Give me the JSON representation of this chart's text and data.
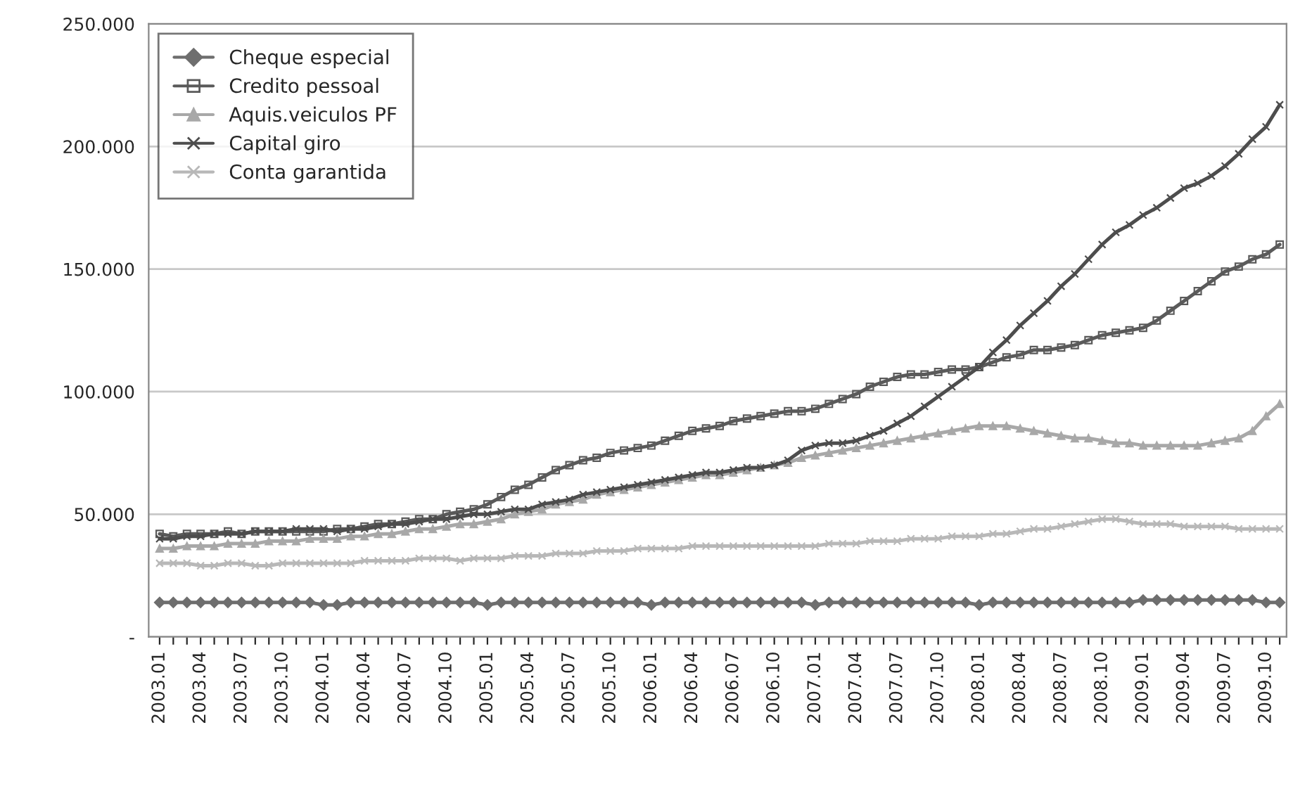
{
  "chart_data": {
    "type": "line",
    "categories": [
      "2003.01",
      null,
      null,
      "2003.04",
      null,
      null,
      "2003.07",
      null,
      null,
      "2003.10",
      null,
      null,
      "2004.01",
      null,
      null,
      "2004.04",
      null,
      null,
      "2004.07",
      null,
      null,
      "2004.10",
      null,
      null,
      "2005.01",
      null,
      null,
      "2005.04",
      null,
      null,
      "2005.07",
      null,
      null,
      "2005.10",
      null,
      null,
      "2006.01",
      null,
      null,
      "2006.04",
      null,
      null,
      "2006.07",
      null,
      null,
      "2006.10",
      null,
      null,
      "2007.01",
      null,
      null,
      "2007.04",
      null,
      null,
      "2007.07",
      null,
      null,
      "2007.10",
      null,
      null,
      "2008.01",
      null,
      null,
      "2008.04",
      null,
      null,
      "2008.07",
      null,
      null,
      "2008.10",
      null,
      null,
      "2009.01",
      null,
      null,
      "2009.04",
      null,
      null,
      "2009.07",
      null,
      null,
      "2009.10",
      null
    ],
    "series": [
      {
        "name": "Cheque especial",
        "color": "#6e6e6e",
        "marker": "diamond",
        "values": [
          14,
          14,
          14,
          14,
          14,
          14,
          14,
          14,
          14,
          14,
          14,
          14,
          13,
          13,
          14,
          14,
          14,
          14,
          14,
          14,
          14,
          14,
          14,
          14,
          13,
          14,
          14,
          14,
          14,
          14,
          14,
          14,
          14,
          14,
          14,
          14,
          13,
          14,
          14,
          14,
          14,
          14,
          14,
          14,
          14,
          14,
          14,
          14,
          13,
          14,
          14,
          14,
          14,
          14,
          14,
          14,
          14,
          14,
          14,
          14,
          13,
          14,
          14,
          14,
          14,
          14,
          14,
          14,
          14,
          14,
          14,
          14,
          15,
          15,
          15,
          15,
          15,
          15,
          15,
          15,
          15,
          14,
          14
        ]
      },
      {
        "name": "Credito pessoal",
        "color": "#5a5a5a",
        "marker": "square",
        "values": [
          42,
          41,
          42,
          42,
          42,
          43,
          42,
          43,
          43,
          43,
          43,
          43,
          43,
          44,
          44,
          45,
          46,
          46,
          47,
          48,
          48,
          50,
          51,
          52,
          54,
          57,
          60,
          62,
          65,
          68,
          70,
          72,
          73,
          75,
          76,
          77,
          78,
          80,
          82,
          84,
          85,
          86,
          88,
          89,
          90,
          91,
          92,
          92,
          93,
          95,
          97,
          99,
          102,
          104,
          106,
          107,
          107,
          108,
          109,
          109,
          110,
          112,
          114,
          115,
          117,
          117,
          118,
          119,
          121,
          123,
          124,
          125,
          126,
          129,
          133,
          137,
          141,
          145,
          149,
          151,
          154,
          156,
          160
        ]
      },
      {
        "name": "Aquis.veiculos PF",
        "color": "#a8a8a8",
        "marker": "triangle",
        "values": [
          36,
          36,
          37,
          37,
          37,
          38,
          38,
          38,
          39,
          39,
          39,
          40,
          40,
          40,
          41,
          41,
          42,
          42,
          43,
          44,
          44,
          45,
          46,
          46,
          47,
          48,
          50,
          51,
          52,
          54,
          55,
          56,
          58,
          59,
          60,
          61,
          62,
          63,
          64,
          65,
          66,
          66,
          67,
          68,
          69,
          70,
          71,
          73,
          74,
          75,
          76,
          77,
          78,
          79,
          80,
          81,
          82,
          83,
          84,
          85,
          86,
          86,
          86,
          85,
          84,
          83,
          82,
          81,
          81,
          80,
          79,
          79,
          78,
          78,
          78,
          78,
          78,
          79,
          80,
          81,
          84,
          90,
          95
        ]
      },
      {
        "name": "Capital giro",
        "color": "#4d4d4d",
        "marker": "cross",
        "values": [
          40,
          40,
          41,
          41,
          42,
          42,
          42,
          43,
          43,
          43,
          44,
          44,
          44,
          43,
          44,
          44,
          45,
          46,
          46,
          47,
          48,
          48,
          49,
          50,
          50,
          51,
          52,
          52,
          54,
          55,
          56,
          58,
          59,
          60,
          61,
          62,
          63,
          64,
          65,
          66,
          67,
          67,
          68,
          69,
          69,
          70,
          72,
          76,
          78,
          79,
          79,
          80,
          82,
          84,
          87,
          90,
          94,
          98,
          102,
          106,
          110,
          116,
          121,
          127,
          132,
          137,
          143,
          148,
          154,
          160,
          165,
          168,
          172,
          175,
          179,
          183,
          185,
          188,
          192,
          197,
          203,
          208,
          217
        ]
      },
      {
        "name": "Conta garantida",
        "color": "#b8b8b8",
        "marker": "cross",
        "values": [
          30,
          30,
          30,
          29,
          29,
          30,
          30,
          29,
          29,
          30,
          30,
          30,
          30,
          30,
          30,
          31,
          31,
          31,
          31,
          32,
          32,
          32,
          31,
          32,
          32,
          32,
          33,
          33,
          33,
          34,
          34,
          34,
          35,
          35,
          35,
          36,
          36,
          36,
          36,
          37,
          37,
          37,
          37,
          37,
          37,
          37,
          37,
          37,
          37,
          38,
          38,
          38,
          39,
          39,
          39,
          40,
          40,
          40,
          41,
          41,
          41,
          42,
          42,
          43,
          44,
          44,
          45,
          46,
          47,
          48,
          48,
          47,
          46,
          46,
          46,
          45,
          45,
          45,
          45,
          44,
          44,
          44,
          44
        ]
      }
    ],
    "ylim": [
      0,
      250
    ],
    "yticks": [
      {
        "value": 0,
        "label": "-"
      },
      {
        "value": 50,
        "label": "50.000"
      },
      {
        "value": 100,
        "label": "100.000"
      },
      {
        "value": 150,
        "label": "150.000"
      },
      {
        "value": 200,
        "label": "200.000"
      },
      {
        "value": 250,
        "label": "250.000"
      }
    ],
    "grid": "y",
    "legend": "top left"
  }
}
